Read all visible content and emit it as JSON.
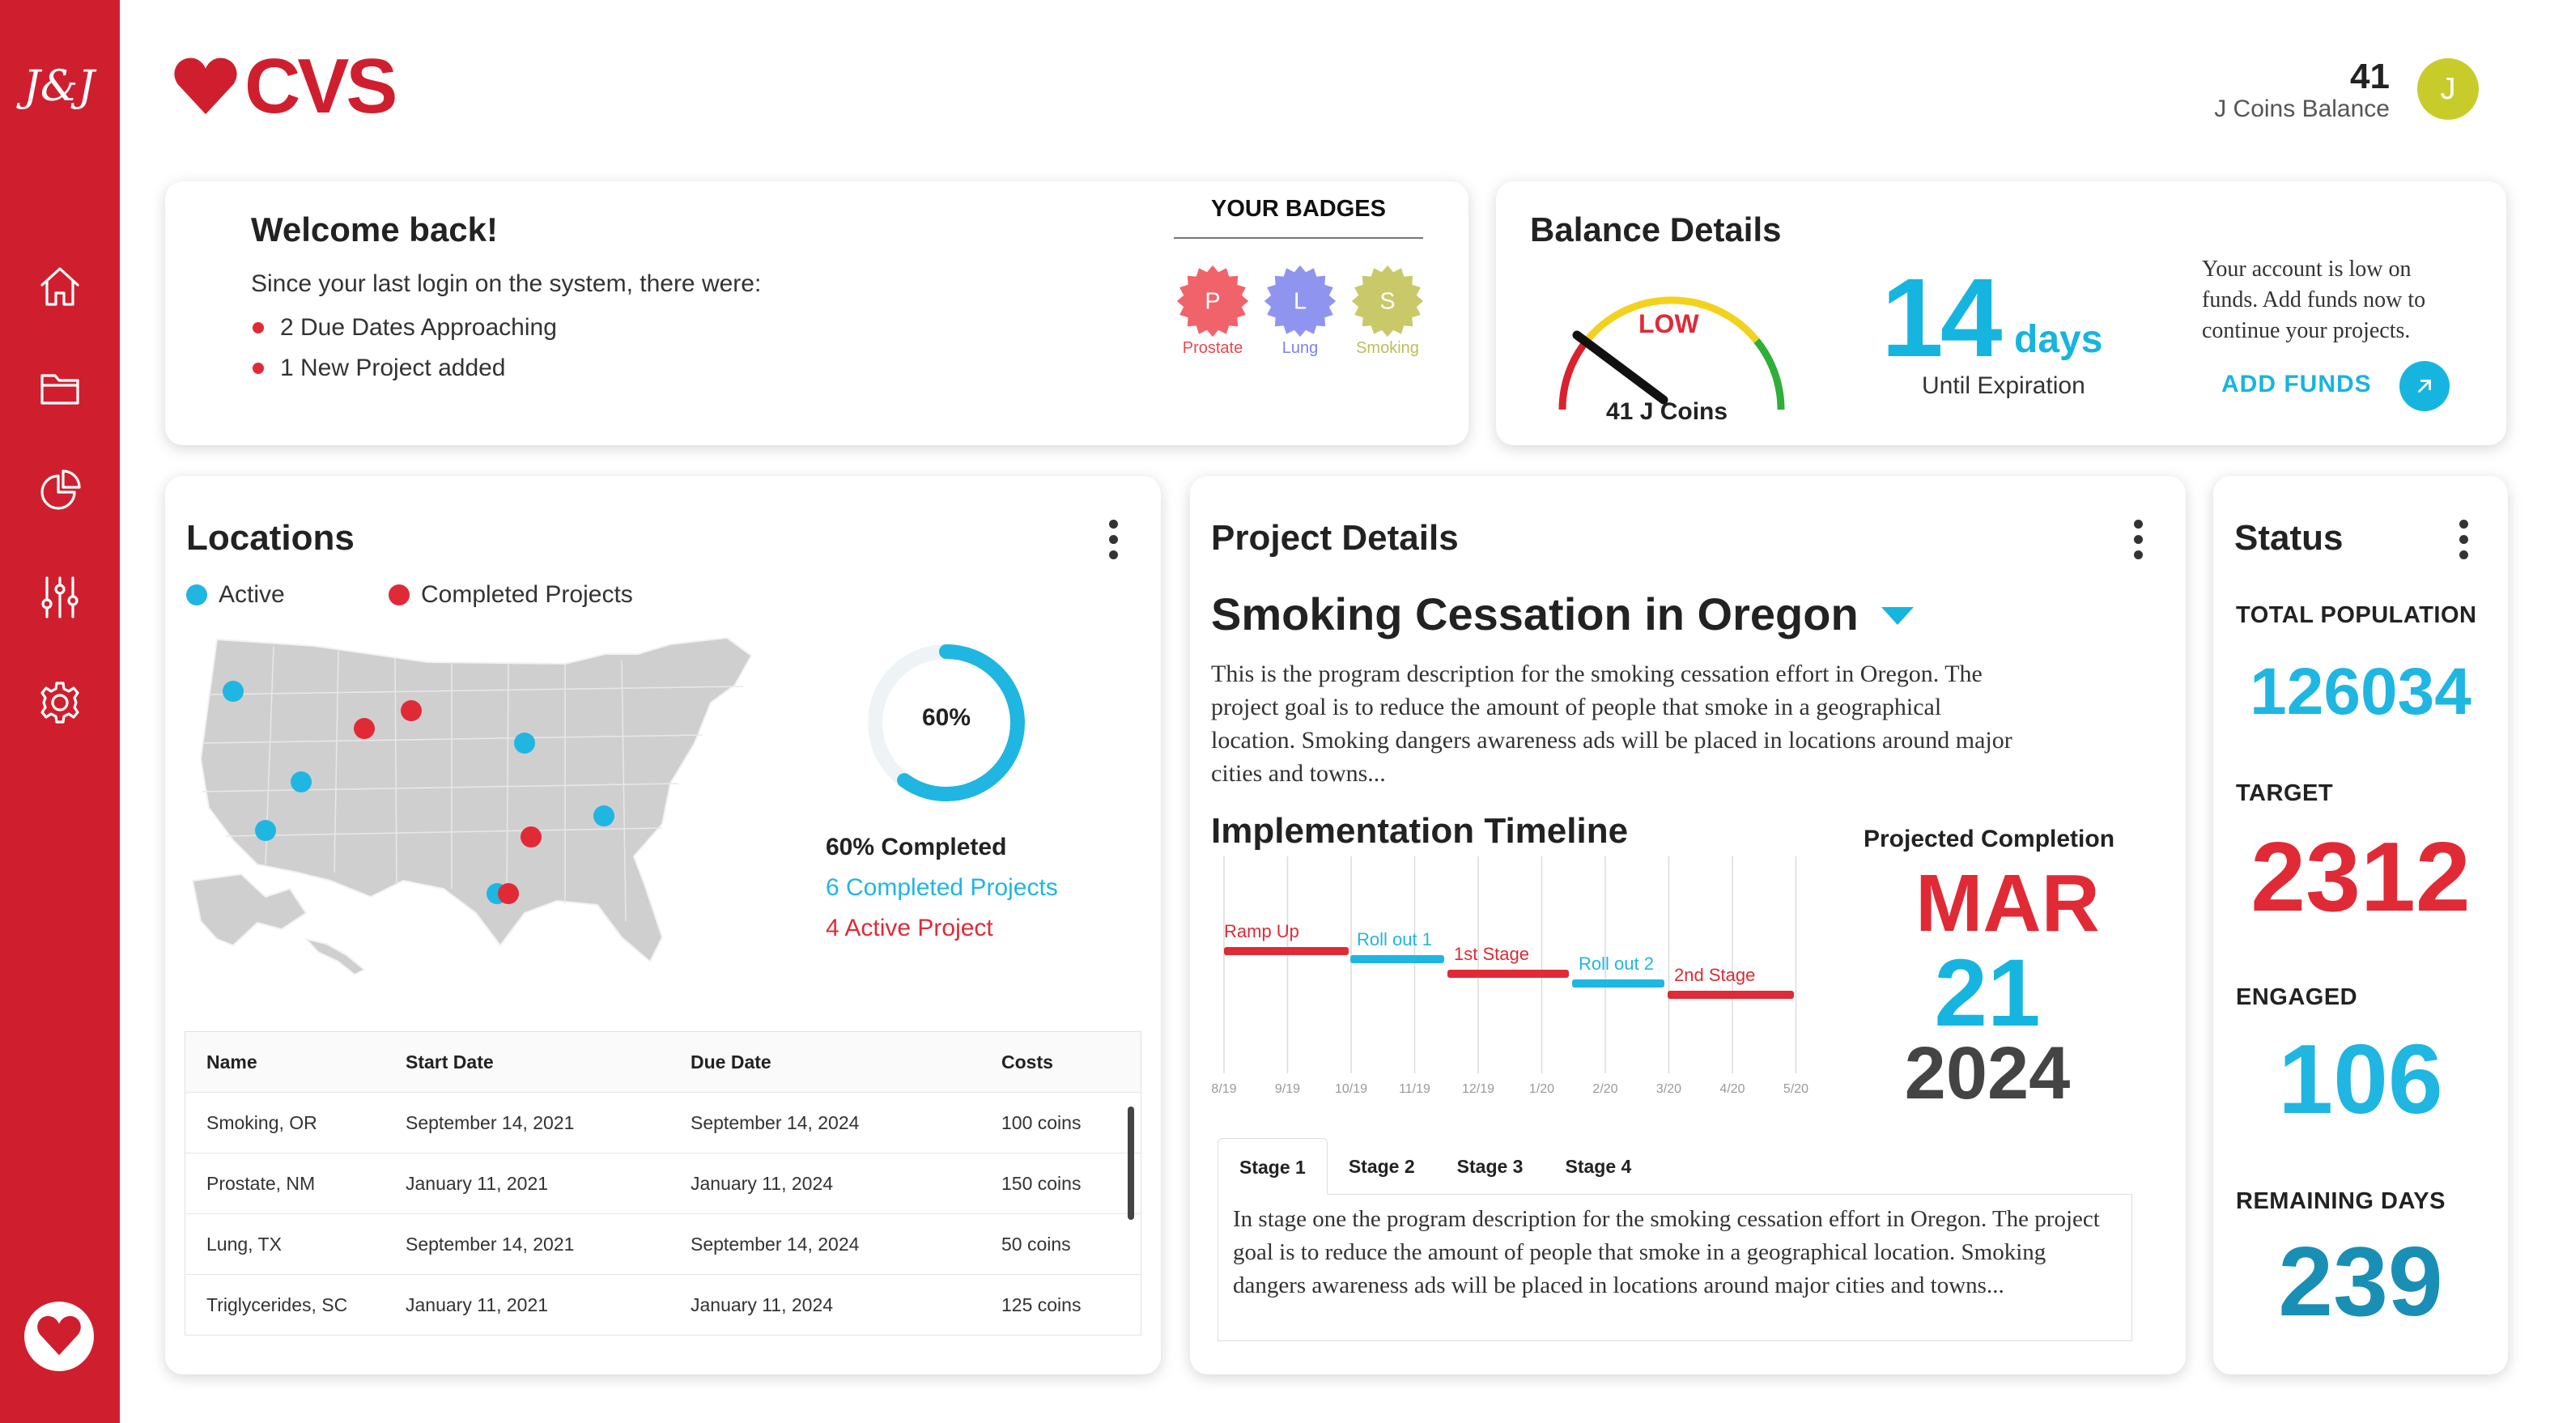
{
  "sidebar": {
    "logo": "J&J",
    "nav": [
      "home-icon",
      "folder-icon",
      "pie-chart-icon",
      "sliders-icon",
      "gear-icon"
    ],
    "bottom_icon": "heart-icon"
  },
  "header": {
    "brand": "CVS",
    "balance_value": "41",
    "balance_label": "J Coins Balance",
    "avatar_initial": "J"
  },
  "welcome": {
    "title": "Welcome back!",
    "subtitle": "Since your last login on the system, there were:",
    "items": [
      "2 Due Dates Approaching",
      "1 New Project added"
    ],
    "badges_title": "YOUR BADGES",
    "badges": [
      {
        "letter": "P",
        "label": "Prostate",
        "color": "#f0636a"
      },
      {
        "letter": "L",
        "label": "Lung",
        "color": "#8f95ef"
      },
      {
        "letter": "S",
        "label": "Smoking",
        "color": "#c9c96a"
      }
    ]
  },
  "balance": {
    "title": "Balance Details",
    "gauge_status": "LOW",
    "gauge_coins": "41 J Coins",
    "days_value": "14",
    "days_unit": "days",
    "days_label": "Until Expiration",
    "message": "Your account is low on funds. Add funds now to continue your projects.",
    "add_funds_label": "ADD FUNDS"
  },
  "locations": {
    "title": "Locations",
    "legend": [
      {
        "label": "Active",
        "color": "#1fb6e2"
      },
      {
        "label": "Completed Projects",
        "color": "#e02a36"
      }
    ],
    "donut_percent": 60,
    "donut_label": "60%",
    "stat_completed": "60% Completed",
    "stat_completed_projects": "6 Completed Projects",
    "stat_active": "4 Active Project",
    "table": {
      "headers": [
        "Name",
        "Start Date",
        "Due Date",
        "Costs"
      ],
      "rows": [
        [
          "Smoking, OR",
          "September 14, 2021",
          "September 14, 2024",
          "100 coins"
        ],
        [
          "Prostate, NM",
          "January 11, 2021",
          "January 11, 2024",
          "150 coins"
        ],
        [
          "Lung, TX",
          "September 14, 2021",
          "September 14, 2024",
          "50 coins"
        ],
        [
          "Triglycerides, SC",
          "January 11, 2021",
          "January 11, 2024",
          "125 coins"
        ]
      ]
    }
  },
  "project": {
    "title": "Project Details",
    "name": "Smoking Cessation in Oregon",
    "description": "This is the program description for the smoking cessation effort in Oregon. The project goal is to reduce the amount of people that smoke in a geographical location. Smoking dangers awareness ads will be placed in locations around major cities and towns...",
    "timeline_title": "Implementation Timeline",
    "timeline": {
      "ticks": [
        "8/19",
        "9/19",
        "10/19",
        "11/19",
        "12/19",
        "1/20",
        "2/20",
        "3/20",
        "4/20",
        "5/20"
      ],
      "stages": [
        {
          "label": "Ramp Up",
          "color": "#e02a36"
        },
        {
          "label": "Roll out 1",
          "color": "#1fb6e2"
        },
        {
          "label": "1st Stage",
          "color": "#e02a36"
        },
        {
          "label": "Roll out 2",
          "color": "#1fb6e2"
        },
        {
          "label": "2nd Stage",
          "color": "#e02a36"
        }
      ]
    },
    "projected_label": "Projected Completion",
    "projected_month": "MAR",
    "projected_day": "21",
    "projected_year": "2024",
    "tabs": [
      "Stage 1",
      "Stage 2",
      "Stage 3",
      "Stage 4"
    ],
    "stage_text": "In stage one the program description for the smoking cessation effort in Oregon. The project goal is to reduce the amount of people that smoke in a geographical location. Smoking dangers awareness ads will be placed in locations around major cities and towns..."
  },
  "status": {
    "title": "Status",
    "total_population_label": "TOTAL POPULATION",
    "total_population": "126034",
    "target_label": "TARGET",
    "target": "2312",
    "engaged_label": "ENGAGED",
    "engaged": "106",
    "remaining_label": "REMAINING DAYS",
    "remaining": "239"
  },
  "colors": {
    "brand_red": "#cf1f2e",
    "accent_blue": "#16b5e0",
    "alert_red": "#e02a36"
  }
}
